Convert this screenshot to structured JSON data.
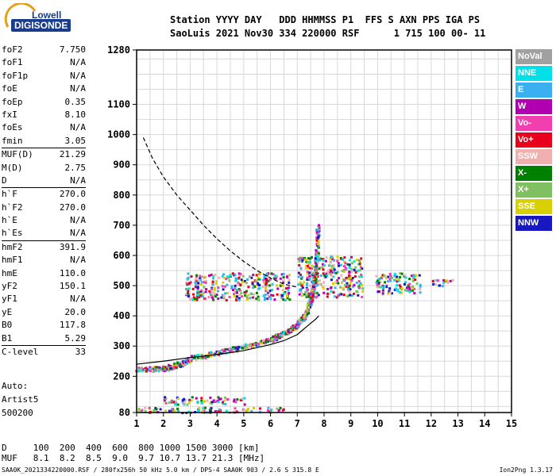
{
  "logo": {
    "line1": "Lowell",
    "line2": "DIGISONDE"
  },
  "header": {
    "line1": "Station YYYY DAY   DDD HHMMSS P1  FFS S AXN PPS IGA PS",
    "line2": "SaoLuis 2021 Nov30 334 220000 RSF      1 715 100 00- 11"
  },
  "params": [
    {
      "label": "foF2",
      "value": "7.750"
    },
    {
      "label": "foF1",
      "value": "N/A"
    },
    {
      "label": "foF1p",
      "value": "N/A"
    },
    {
      "label": "foE",
      "value": "N/A"
    },
    {
      "label": "foEp",
      "value": "0.35"
    },
    {
      "label": "fxI",
      "value": "8.10"
    },
    {
      "label": "foEs",
      "value": "N/A"
    },
    {
      "label": "fmin",
      "value": "3.05"
    },
    {
      "label": "MUF(D)",
      "value": "21.29",
      "sep": true
    },
    {
      "label": "M(D)",
      "value": "2.75"
    },
    {
      "label": "D",
      "value": "N/A"
    },
    {
      "label": "h`F",
      "value": "270.0",
      "sep": true
    },
    {
      "label": "h`F2",
      "value": "270.0"
    },
    {
      "label": "h`E",
      "value": "N/A"
    },
    {
      "label": "h`Es",
      "value": "N/A"
    },
    {
      "label": "hmF2",
      "value": "391.9",
      "sep": true
    },
    {
      "label": "hmF1",
      "value": "N/A"
    },
    {
      "label": "hmE",
      "value": "110.0"
    },
    {
      "label": "yF2",
      "value": "150.1"
    },
    {
      "label": "yF1",
      "value": "N/A"
    },
    {
      "label": "yE",
      "value": "20.0"
    },
    {
      "label": "B0",
      "value": "117.8"
    },
    {
      "label": "B1",
      "value": "5.29"
    },
    {
      "label": "C-level",
      "value": "33",
      "sep": true
    }
  ],
  "auto": {
    "line1": "Auto:",
    "line2": "Artist5",
    "line3": "500200"
  },
  "legend": [
    {
      "label": "NoVal",
      "color": "#a0a0a0"
    },
    {
      "label": "NNE",
      "color": "#00e0e8"
    },
    {
      "label": "E",
      "color": "#3ab0f0"
    },
    {
      "label": "W",
      "color": "#b000b0"
    },
    {
      "label": "Vo-",
      "color": "#f040b0"
    },
    {
      "label": "Vo+",
      "color": "#e8001c"
    },
    {
      "label": "SSW",
      "color": "#f0b0b0"
    },
    {
      "label": "X-",
      "color": "#008000"
    },
    {
      "label": "X+",
      "color": "#80c060"
    },
    {
      "label": "SSE",
      "color": "#d8d000"
    },
    {
      "label": "NNW",
      "color": "#1818c0"
    }
  ],
  "bottom": {
    "d_row": "D     100  200  400  600  800 1000 1500 3000 [km]",
    "muf_row": "MUF   8.1  8.2  8.5  9.0  9.7 10.7 13.7 21.3 [MHz]"
  },
  "footer": {
    "left": "SAA0K_2021334220000.RSF / 280fx256h 50 kHz 5.0 km / DPS-4 SAA0K 903 / 2.6 S 315.8 E",
    "right": "Ion2Png 1.3.17"
  },
  "chart_data": {
    "type": "scatter",
    "x": {
      "label": "",
      "range": [
        1,
        15
      ],
      "ticks": [
        1,
        2,
        3,
        4,
        5,
        6,
        7,
        8,
        9,
        10,
        11,
        12,
        13,
        14,
        15
      ]
    },
    "y": {
      "label": "",
      "range": [
        80,
        1280
      ],
      "ticks": [
        80,
        200,
        300,
        400,
        500,
        600,
        700,
        800,
        900,
        1000,
        1100,
        1280
      ]
    },
    "grid": true,
    "series": [
      {
        "kind": "line",
        "color": "#000000",
        "points": [
          [
            1.0,
            240
          ],
          [
            2.0,
            250
          ],
          [
            3.0,
            262
          ],
          [
            4.0,
            272
          ],
          [
            5.0,
            285
          ],
          [
            6.0,
            305
          ],
          [
            6.5,
            318
          ],
          [
            7.0,
            338
          ],
          [
            7.4,
            368
          ],
          [
            7.7,
            390
          ],
          [
            7.8,
            400
          ]
        ]
      },
      {
        "kind": "dashed",
        "color": "#000000",
        "points": [
          [
            1.25,
            990
          ],
          [
            1.6,
            920
          ],
          [
            2.0,
            860
          ],
          [
            2.5,
            800
          ],
          [
            3.0,
            750
          ],
          [
            3.5,
            700
          ],
          [
            4.0,
            655
          ],
          [
            4.5,
            615
          ],
          [
            5.0,
            580
          ],
          [
            5.5,
            550
          ],
          [
            6.0,
            525
          ],
          [
            6.5,
            505
          ],
          [
            7.0,
            495
          ]
        ]
      },
      {
        "kind": "trace",
        "label": "F-trace",
        "points": [
          [
            1.0,
            225
          ],
          [
            2.0,
            228
          ],
          [
            2.7,
            245
          ],
          [
            3.0,
            262
          ],
          [
            4.0,
            280
          ],
          [
            5.0,
            300
          ],
          [
            6.0,
            325
          ],
          [
            6.5,
            345
          ],
          [
            7.0,
            375
          ],
          [
            7.3,
            410
          ],
          [
            7.5,
            460
          ],
          [
            7.6,
            520
          ],
          [
            7.7,
            600
          ],
          [
            7.75,
            700
          ]
        ]
      }
    ],
    "regions": [
      {
        "x": [
          1.0,
          6.5
        ],
        "y": [
          82,
          100
        ]
      },
      {
        "x": [
          2.0,
          5.0
        ],
        "y": [
          110,
          135
        ]
      },
      {
        "x": [
          2.8,
          6.7
        ],
        "y": [
          455,
          545
        ]
      },
      {
        "x": [
          7.0,
          9.4
        ],
        "y": [
          465,
          600
        ]
      },
      {
        "x": [
          9.9,
          11.6
        ],
        "y": [
          475,
          545
        ]
      },
      {
        "x": [
          12.0,
          12.8
        ],
        "y": [
          500,
          525
        ]
      }
    ]
  }
}
